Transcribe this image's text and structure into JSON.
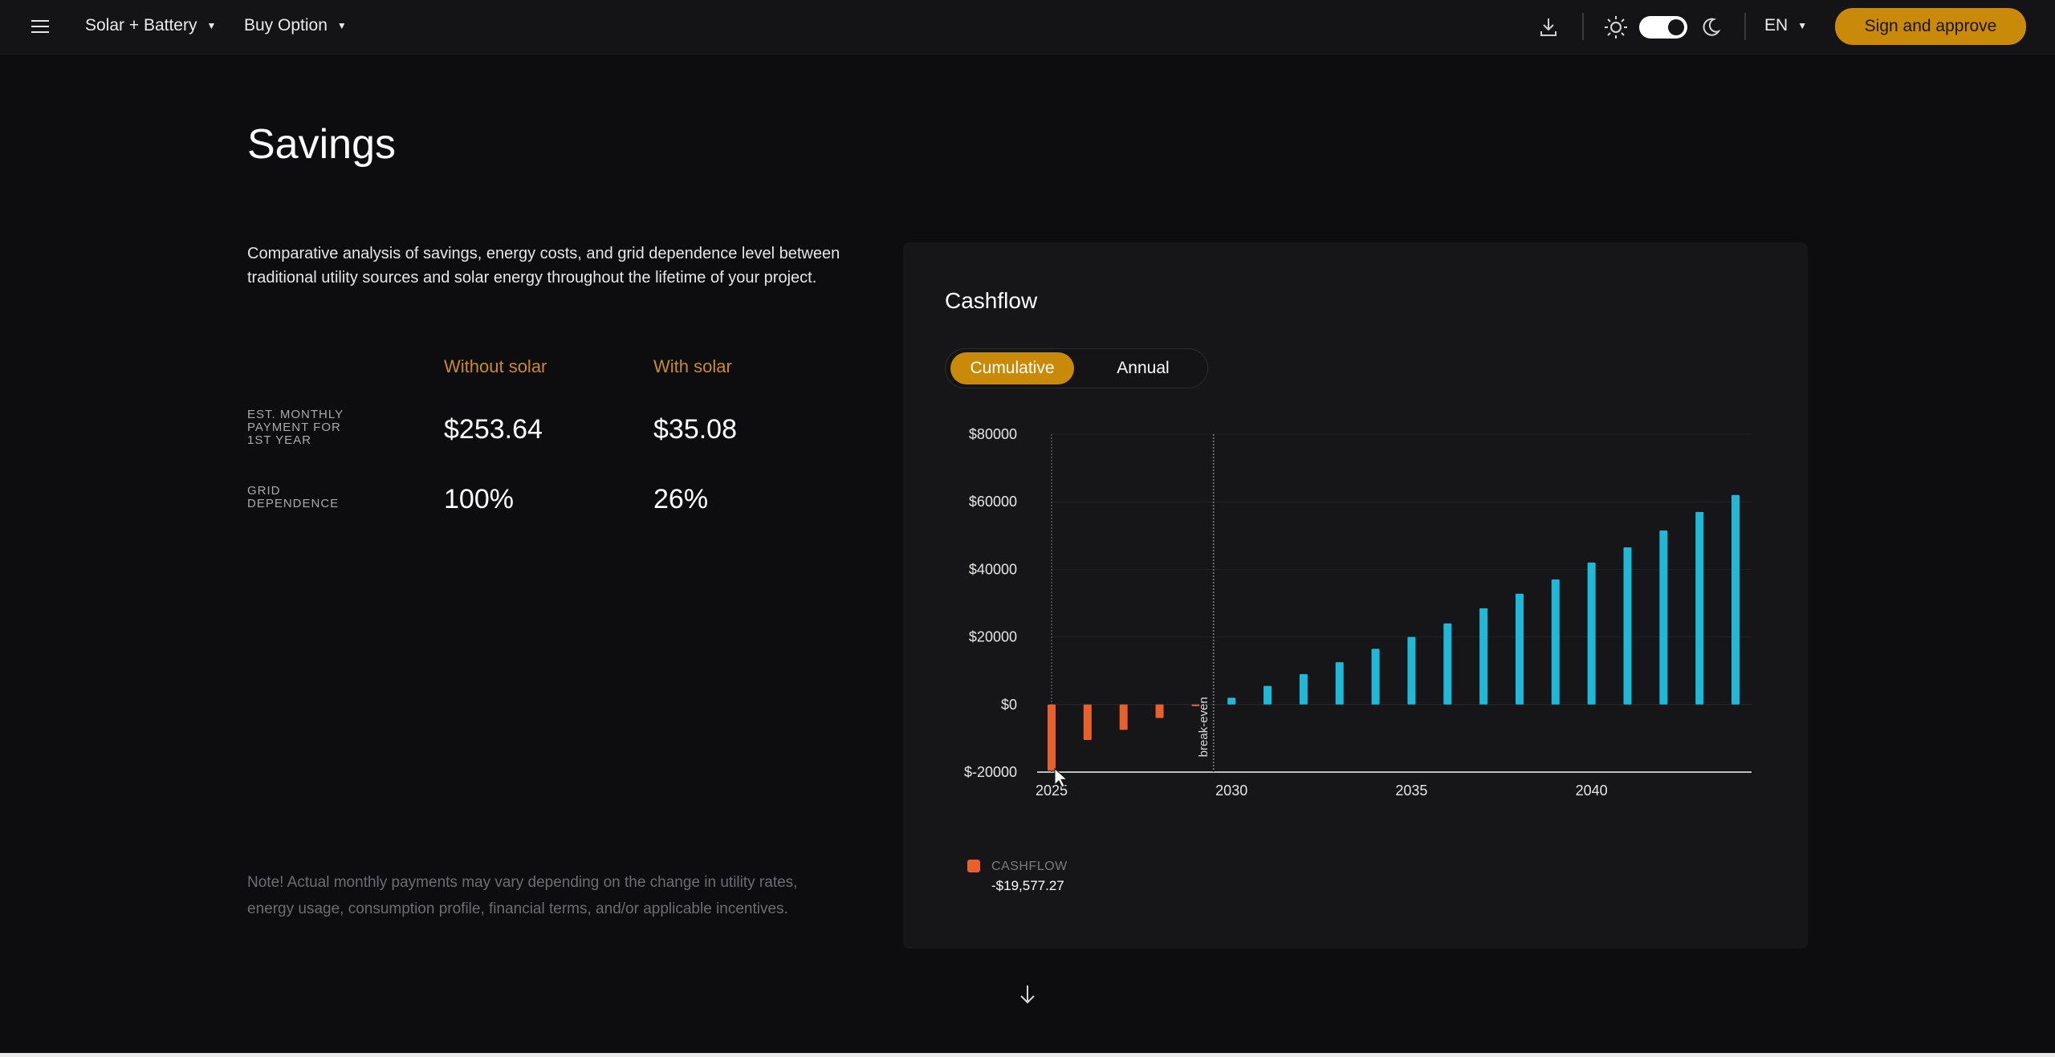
{
  "topbar": {
    "menu_icon": "hamburger-menu-icon",
    "system_label": "Solar + Battery",
    "option_label": "Buy Option",
    "download_icon": "download-icon",
    "sun_icon": "sun-icon",
    "moon_icon": "moon-icon",
    "theme_toggle_state": "on",
    "language": "EN",
    "sign_label": "Sign and approve"
  },
  "main": {
    "title": "Savings",
    "intro": "Comparative analysis of savings, energy costs, and grid dependence level between traditional utility sources and solar energy throughout the lifetime of your project.",
    "columns": [
      "Without solar",
      "With solar"
    ],
    "rows": [
      {
        "label": "EST. MONTHLY PAYMENT FOR 1ST YEAR",
        "without": "$253.64",
        "with": "$35.08"
      },
      {
        "label": "GRID DEPENDENCE",
        "without": "100%",
        "with": "26%"
      }
    ],
    "note": "Note! Actual monthly payments may vary depending on the change in utility rates, energy usage, consumption profile, financial terms, and/or applicable incentives."
  },
  "card": {
    "title": "Cashflow",
    "tabs": [
      {
        "label": "Cumulative",
        "active": true
      },
      {
        "label": "Annual",
        "active": false
      }
    ],
    "legend": {
      "name": "CASHFLOW",
      "value": "-$19,577.27"
    }
  },
  "colors": {
    "accent": "#c98a0a",
    "negative": "#e8602c",
    "positive": "#1fb8d6",
    "background": "#0d0d0f",
    "card": "#161618"
  },
  "chart_data": {
    "type": "bar",
    "title": "Cashflow",
    "mode": "Cumulative",
    "x": [
      2025,
      2026,
      2027,
      2028,
      2029,
      2030,
      2031,
      2032,
      2033,
      2034,
      2035,
      2036,
      2037,
      2038,
      2039,
      2040,
      2041,
      2042,
      2043,
      2044
    ],
    "series": [
      {
        "name": "CASHFLOW",
        "values": [
          -19577,
          -10500,
          -7500,
          -4000,
          -500,
          2000,
          5500,
          9000,
          12500,
          16500,
          20000,
          24000,
          28500,
          32800,
          37000,
          42000,
          46500,
          51500,
          57000,
          62000
        ]
      }
    ],
    "xlim": [
      2025,
      2044
    ],
    "xticks": [
      "2025",
      "2030",
      "2035",
      "2040"
    ],
    "ylim": [
      -20000,
      80000
    ],
    "yticks": [
      "$-20000",
      "$0",
      "$20000",
      "$40000",
      "$60000",
      "$80000"
    ],
    "annotation": "break-even",
    "break_even_year": 2029.5,
    "grid": true,
    "legend_position": "bottom-left"
  },
  "scroll_icon": "arrow-down-icon"
}
